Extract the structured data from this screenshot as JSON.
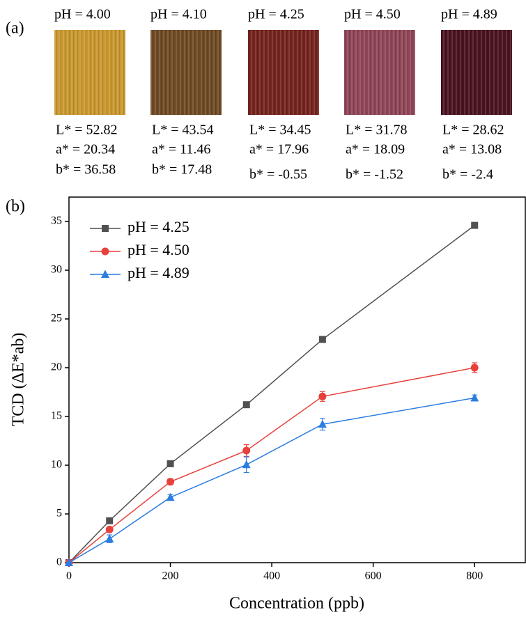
{
  "panel_a": {
    "label": "(a)",
    "swatches": [
      {
        "ph": "pH = 4.00",
        "color": "#c8972e",
        "L": "L* = 52.82",
        "a": "a* = 20.34",
        "b": "b* = 36.58"
      },
      {
        "ph": "pH = 4.10",
        "color": "#6e4a24",
        "L": "L* = 43.54",
        "a": "a* = 11.46",
        "b": "b* = 17.48"
      },
      {
        "ph": "pH = 4.25",
        "color": "#74231e",
        "L": "L* = 34.45",
        "a": "a* = 17.96",
        "b": "b* = -0.55"
      },
      {
        "ph": "pH = 4.50",
        "color": "#8e4556",
        "L": "L* = 31.78",
        "a": "a* = 18.09",
        "b": "b* = -1.52"
      },
      {
        "ph": "pH = 4.89",
        "color": "#4a1320",
        "L": "L* = 28.62",
        "a": "a* = 13.08",
        "b": "b* = -2.4"
      }
    ]
  },
  "chart_data": {
    "type": "line",
    "panel_label": "(b)",
    "x_label": "Concentration (ppb)",
    "y_label": "TCD (ΔE*ab)",
    "x": [
      0,
      80,
      200,
      350,
      500,
      800
    ],
    "series": [
      {
        "name": "pH = 4.25",
        "color": "#505050",
        "marker": "square",
        "values": [
          0,
          4.3,
          10.15,
          16.2,
          22.9,
          34.6
        ]
      },
      {
        "name": "pH = 4.50",
        "color": "#e8413c",
        "marker": "circle",
        "values": [
          0,
          3.4,
          8.3,
          11.5,
          17.05,
          20.0
        ],
        "errors": [
          0,
          0.2,
          0.3,
          0.6,
          0.5,
          0.5
        ]
      },
      {
        "name": "pH = 4.89",
        "color": "#2b7de0",
        "marker": "triangle",
        "values": [
          0,
          2.45,
          6.7,
          10.05,
          14.2,
          16.9
        ],
        "errors": [
          0,
          0.4,
          0.3,
          0.8,
          0.6,
          0.3
        ]
      }
    ],
    "xlim": [
      0,
      900
    ],
    "ylim": [
      0,
      37.5
    ],
    "xticks": [
      0,
      200,
      400,
      600,
      800
    ],
    "yticks": [
      0,
      5,
      10,
      15,
      20,
      25,
      30,
      35
    ],
    "legend": "upper-left"
  }
}
